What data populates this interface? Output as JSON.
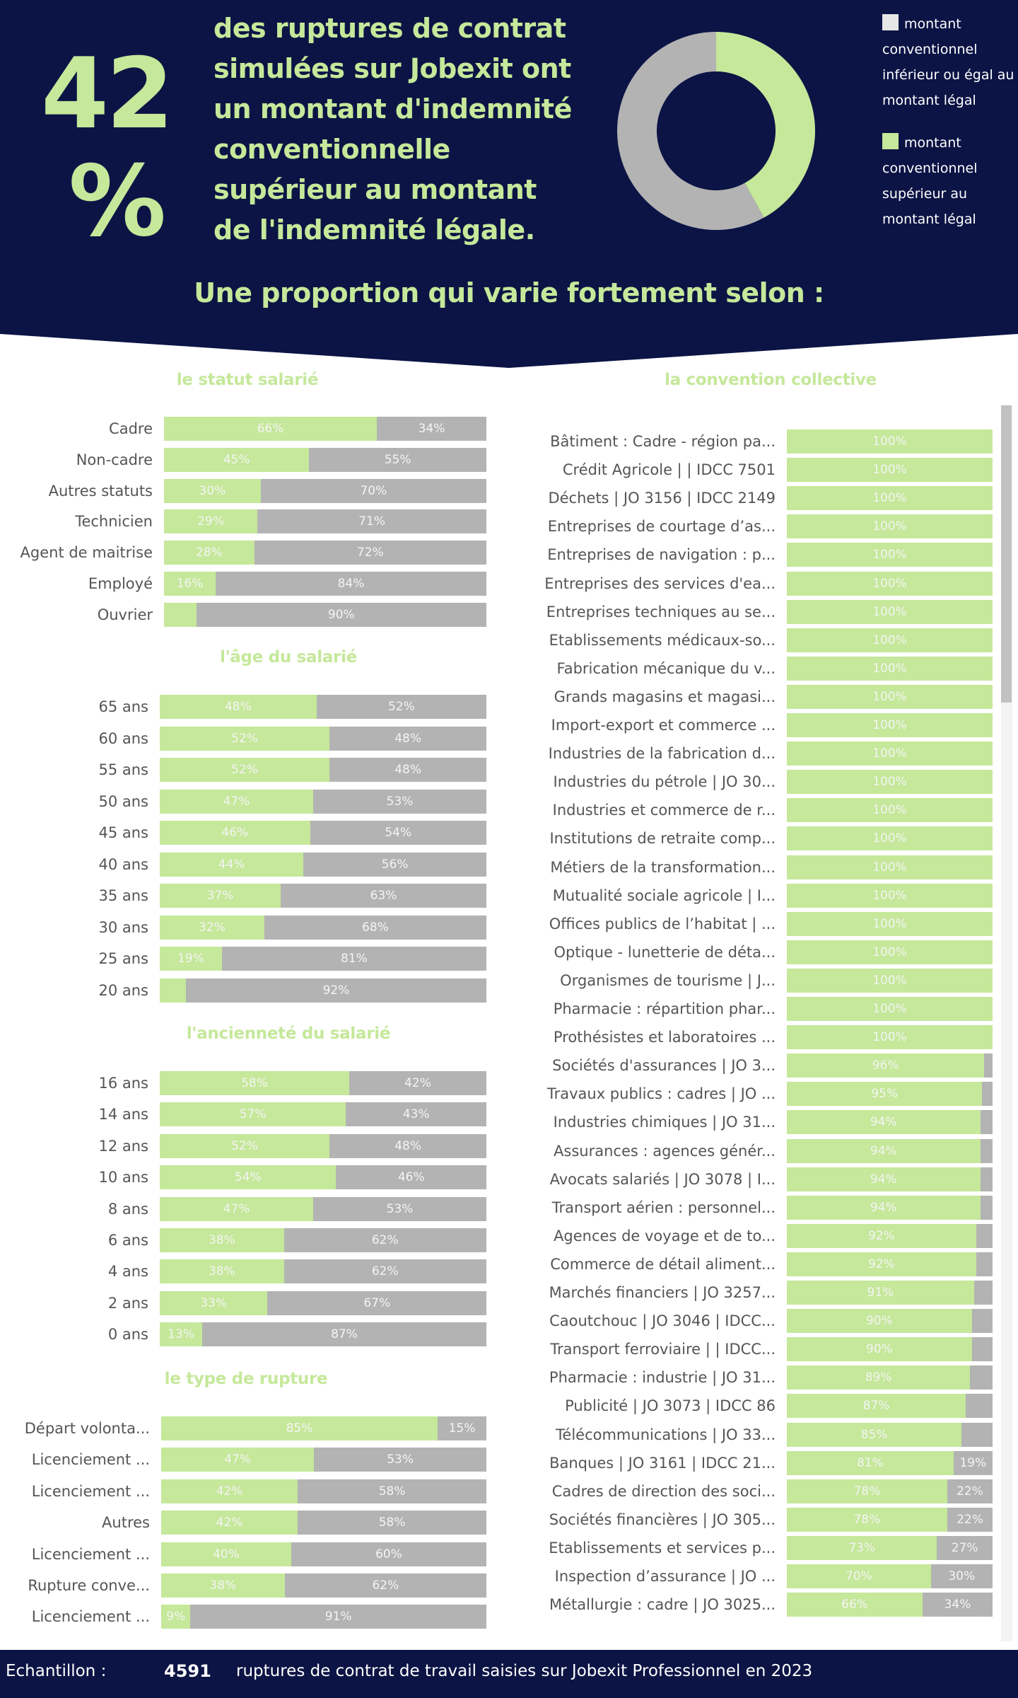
{
  "header": {
    "big_number": "42",
    "big_sign": "%",
    "headline": "des ruptures de contrat simulées sur Jobexit ont un montant d'indemnité conventionnelle supérieur au montant de l'indemnité légale.",
    "subtitle": "Une proportion qui varie fortement selon :"
  },
  "colors": {
    "navy": "#0c1445",
    "green": "#c5e89a",
    "grey": "#b3b3b3",
    "legend_light": "#e6e6e6"
  },
  "donut": {
    "legend": [
      {
        "label": "montant conventionnel inférieur ou égal au montant légal",
        "color": "#e6e6e6"
      },
      {
        "label": "montant conventionnel supérieur au montant légal",
        "color": "#c5e89a"
      }
    ]
  },
  "chart_data": [
    {
      "type": "pie",
      "title": "Répartition globale",
      "categories": [
        "montant conventionnel supérieur au montant légal",
        "montant conventionnel inférieur ou égal au montant légal"
      ],
      "values": [
        42,
        58
      ],
      "colors": [
        "#c5e89a",
        "#b3b3b3"
      ],
      "donut": true,
      "legend": "right"
    },
    {
      "type": "bar",
      "stacked": true,
      "orientation": "horizontal",
      "title": "le statut salarié",
      "categories": [
        "Cadre",
        "Non-cadre",
        "Autres statuts",
        "Technicien",
        "Agent de maitrise",
        "Employé",
        "Ouvrier"
      ],
      "series": [
        {
          "name": "supérieur",
          "values": [
            66,
            45,
            30,
            29,
            28,
            16,
            10
          ],
          "labels": [
            "66%",
            "45%",
            "30%",
            "29%",
            "28%",
            "16%",
            ""
          ]
        },
        {
          "name": "inférieur ou égal",
          "values": [
            34,
            55,
            70,
            71,
            72,
            84,
            90
          ],
          "labels": [
            "34%",
            "55%",
            "70%",
            "71%",
            "72%",
            "84%",
            "90%"
          ]
        }
      ],
      "xlim": [
        0,
        100
      ]
    },
    {
      "type": "bar",
      "stacked": true,
      "orientation": "horizontal",
      "title": "l'âge du salarié",
      "categories": [
        "65 ans",
        "60 ans",
        "55 ans",
        "50 ans",
        "45 ans",
        "40 ans",
        "35 ans",
        "30 ans",
        "25 ans",
        "20 ans"
      ],
      "series": [
        {
          "name": "supérieur",
          "values": [
            48,
            52,
            52,
            47,
            46,
            44,
            37,
            32,
            19,
            8
          ],
          "labels": [
            "48%",
            "52%",
            "52%",
            "47%",
            "46%",
            "44%",
            "37%",
            "32%",
            "19%",
            ""
          ]
        },
        {
          "name": "inférieur ou égal",
          "values": [
            52,
            48,
            48,
            53,
            54,
            56,
            63,
            68,
            81,
            92
          ],
          "labels": [
            "52%",
            "48%",
            "48%",
            "53%",
            "54%",
            "56%",
            "63%",
            "68%",
            "81%",
            "92%"
          ]
        }
      ],
      "xlim": [
        0,
        100
      ]
    },
    {
      "type": "bar",
      "stacked": true,
      "orientation": "horizontal",
      "title": "l'ancienneté du salarié",
      "categories": [
        "16 ans",
        "14 ans",
        "12 ans",
        "10 ans",
        "8 ans",
        "6 ans",
        "4 ans",
        "2 ans",
        "0 ans"
      ],
      "series": [
        {
          "name": "supérieur",
          "values": [
            58,
            57,
            52,
            54,
            47,
            38,
            38,
            33,
            13
          ],
          "labels": [
            "58%",
            "57%",
            "52%",
            "54%",
            "47%",
            "38%",
            "38%",
            "33%",
            "13%"
          ]
        },
        {
          "name": "inférieur ou égal",
          "values": [
            42,
            43,
            48,
            46,
            53,
            62,
            62,
            67,
            87
          ],
          "labels": [
            "42%",
            "43%",
            "48%",
            "46%",
            "53%",
            "62%",
            "62%",
            "67%",
            "87%"
          ]
        }
      ],
      "xlim": [
        0,
        100
      ]
    },
    {
      "type": "bar",
      "stacked": true,
      "orientation": "horizontal",
      "title": "le type de rupture",
      "categories": [
        "Départ volonta...",
        "Licenciement ...",
        "Licenciement ...",
        "Autres",
        "Licenciement ...",
        "Rupture conve...",
        "Licenciement ..."
      ],
      "series": [
        {
          "name": "supérieur",
          "values": [
            85,
            47,
            42,
            42,
            40,
            38,
            9
          ],
          "labels": [
            "85%",
            "47%",
            "42%",
            "42%",
            "40%",
            "38%",
            "9%"
          ]
        },
        {
          "name": "inférieur ou égal",
          "values": [
            15,
            53,
            58,
            58,
            60,
            62,
            91
          ],
          "labels": [
            "15%",
            "53%",
            "58%",
            "58%",
            "60%",
            "62%",
            "91%"
          ]
        }
      ],
      "xlim": [
        0,
        100
      ]
    },
    {
      "type": "bar",
      "stacked": true,
      "orientation": "horizontal",
      "title": "la convention collective",
      "categories": [
        "Bâtiment : Cadre - région pa...",
        "Crédit Agricole | | IDCC 7501",
        "Déchets | JO 3156 | IDCC 2149",
        "Entreprises de courtage d’as...",
        "Entreprises de navigation : p...",
        "Entreprises des services d'ea...",
        "Entreprises techniques au se...",
        "Etablissements médicaux-so...",
        "Fabrication mécanique du v...",
        "Grands magasins et magasi...",
        "Import-export et commerce ...",
        "Industries de la fabrication d...",
        "Industries du pétrole | JO 30...",
        "Industries et commerce de r...",
        "Institutions de retraite comp...",
        "Métiers de la transformation...",
        "Mutualité sociale agricole | I...",
        "Offices publics de l’habitat | ...",
        "Optique - lunetterie de déta...",
        "Organismes de tourisme | J...",
        "Pharmacie : répartition phar...",
        "Prothésistes et laboratoires ...",
        "Sociétés d'assurances | JO 3...",
        "Travaux publics : cadres | JO ...",
        "Industries chimiques | JO 31...",
        "Assurances : agences génér...",
        "Avocats salariés | JO 3078 | I...",
        "Transport aérien : personnel...",
        "Agences de voyage et de to...",
        "Commerce de détail aliment...",
        "Marchés financiers | JO 3257...",
        "Caoutchouc | JO 3046 | IDCC...",
        "Transport ferroviaire | | IDCC...",
        "Pharmacie : industrie | JO 31...",
        "Publicité | JO 3073 | IDCC 86",
        "Télécommunications | JO 33...",
        "Banques | JO 3161 | IDCC 21...",
        "Cadres de direction des soci...",
        "Sociétés financières | JO 305...",
        "Etablissements et services p...",
        "Inspection d’assurance | JO ...",
        "Métallurgie : cadre | JO 3025..."
      ],
      "series": [
        {
          "name": "supérieur",
          "values": [
            100,
            100,
            100,
            100,
            100,
            100,
            100,
            100,
            100,
            100,
            100,
            100,
            100,
            100,
            100,
            100,
            100,
            100,
            100,
            100,
            100,
            100,
            96,
            95,
            94,
            94,
            94,
            94,
            92,
            92,
            91,
            90,
            90,
            89,
            87,
            85,
            81,
            78,
            78,
            73,
            70,
            66
          ],
          "labels": [
            "100%",
            "100%",
            "100%",
            "100%",
            "100%",
            "100%",
            "100%",
            "100%",
            "100%",
            "100%",
            "100%",
            "100%",
            "100%",
            "100%",
            "100%",
            "100%",
            "100%",
            "100%",
            "100%",
            "100%",
            "100%",
            "100%",
            "96%",
            "95%",
            "94%",
            "94%",
            "94%",
            "94%",
            "92%",
            "92%",
            "91%",
            "90%",
            "90%",
            "89%",
            "87%",
            "85%",
            "81%",
            "78%",
            "78%",
            "73%",
            "70%",
            "66%"
          ]
        },
        {
          "name": "inférieur ou égal",
          "values": [
            0,
            0,
            0,
            0,
            0,
            0,
            0,
            0,
            0,
            0,
            0,
            0,
            0,
            0,
            0,
            0,
            0,
            0,
            0,
            0,
            0,
            0,
            4,
            5,
            6,
            6,
            6,
            6,
            8,
            8,
            9,
            10,
            10,
            11,
            13,
            15,
            19,
            22,
            22,
            27,
            30,
            34
          ],
          "labels": [
            "",
            "",
            "",
            "",
            "",
            "",
            "",
            "",
            "",
            "",
            "",
            "",
            "",
            "",
            "",
            "",
            "",
            "",
            "",
            "",
            "",
            "",
            "",
            "",
            "",
            "",
            "",
            "",
            "",
            "",
            "",
            "",
            "",
            "",
            "",
            "",
            "19%",
            "22%",
            "22%",
            "27%",
            "30%",
            "34%"
          ]
        }
      ],
      "xlim": [
        0,
        100
      ],
      "scrollable": true
    }
  ],
  "footer": {
    "label": "Echantillon :",
    "count": "4591",
    "description": "ruptures de contrat de travail saisies sur Jobexit Professionnel en 2023"
  }
}
